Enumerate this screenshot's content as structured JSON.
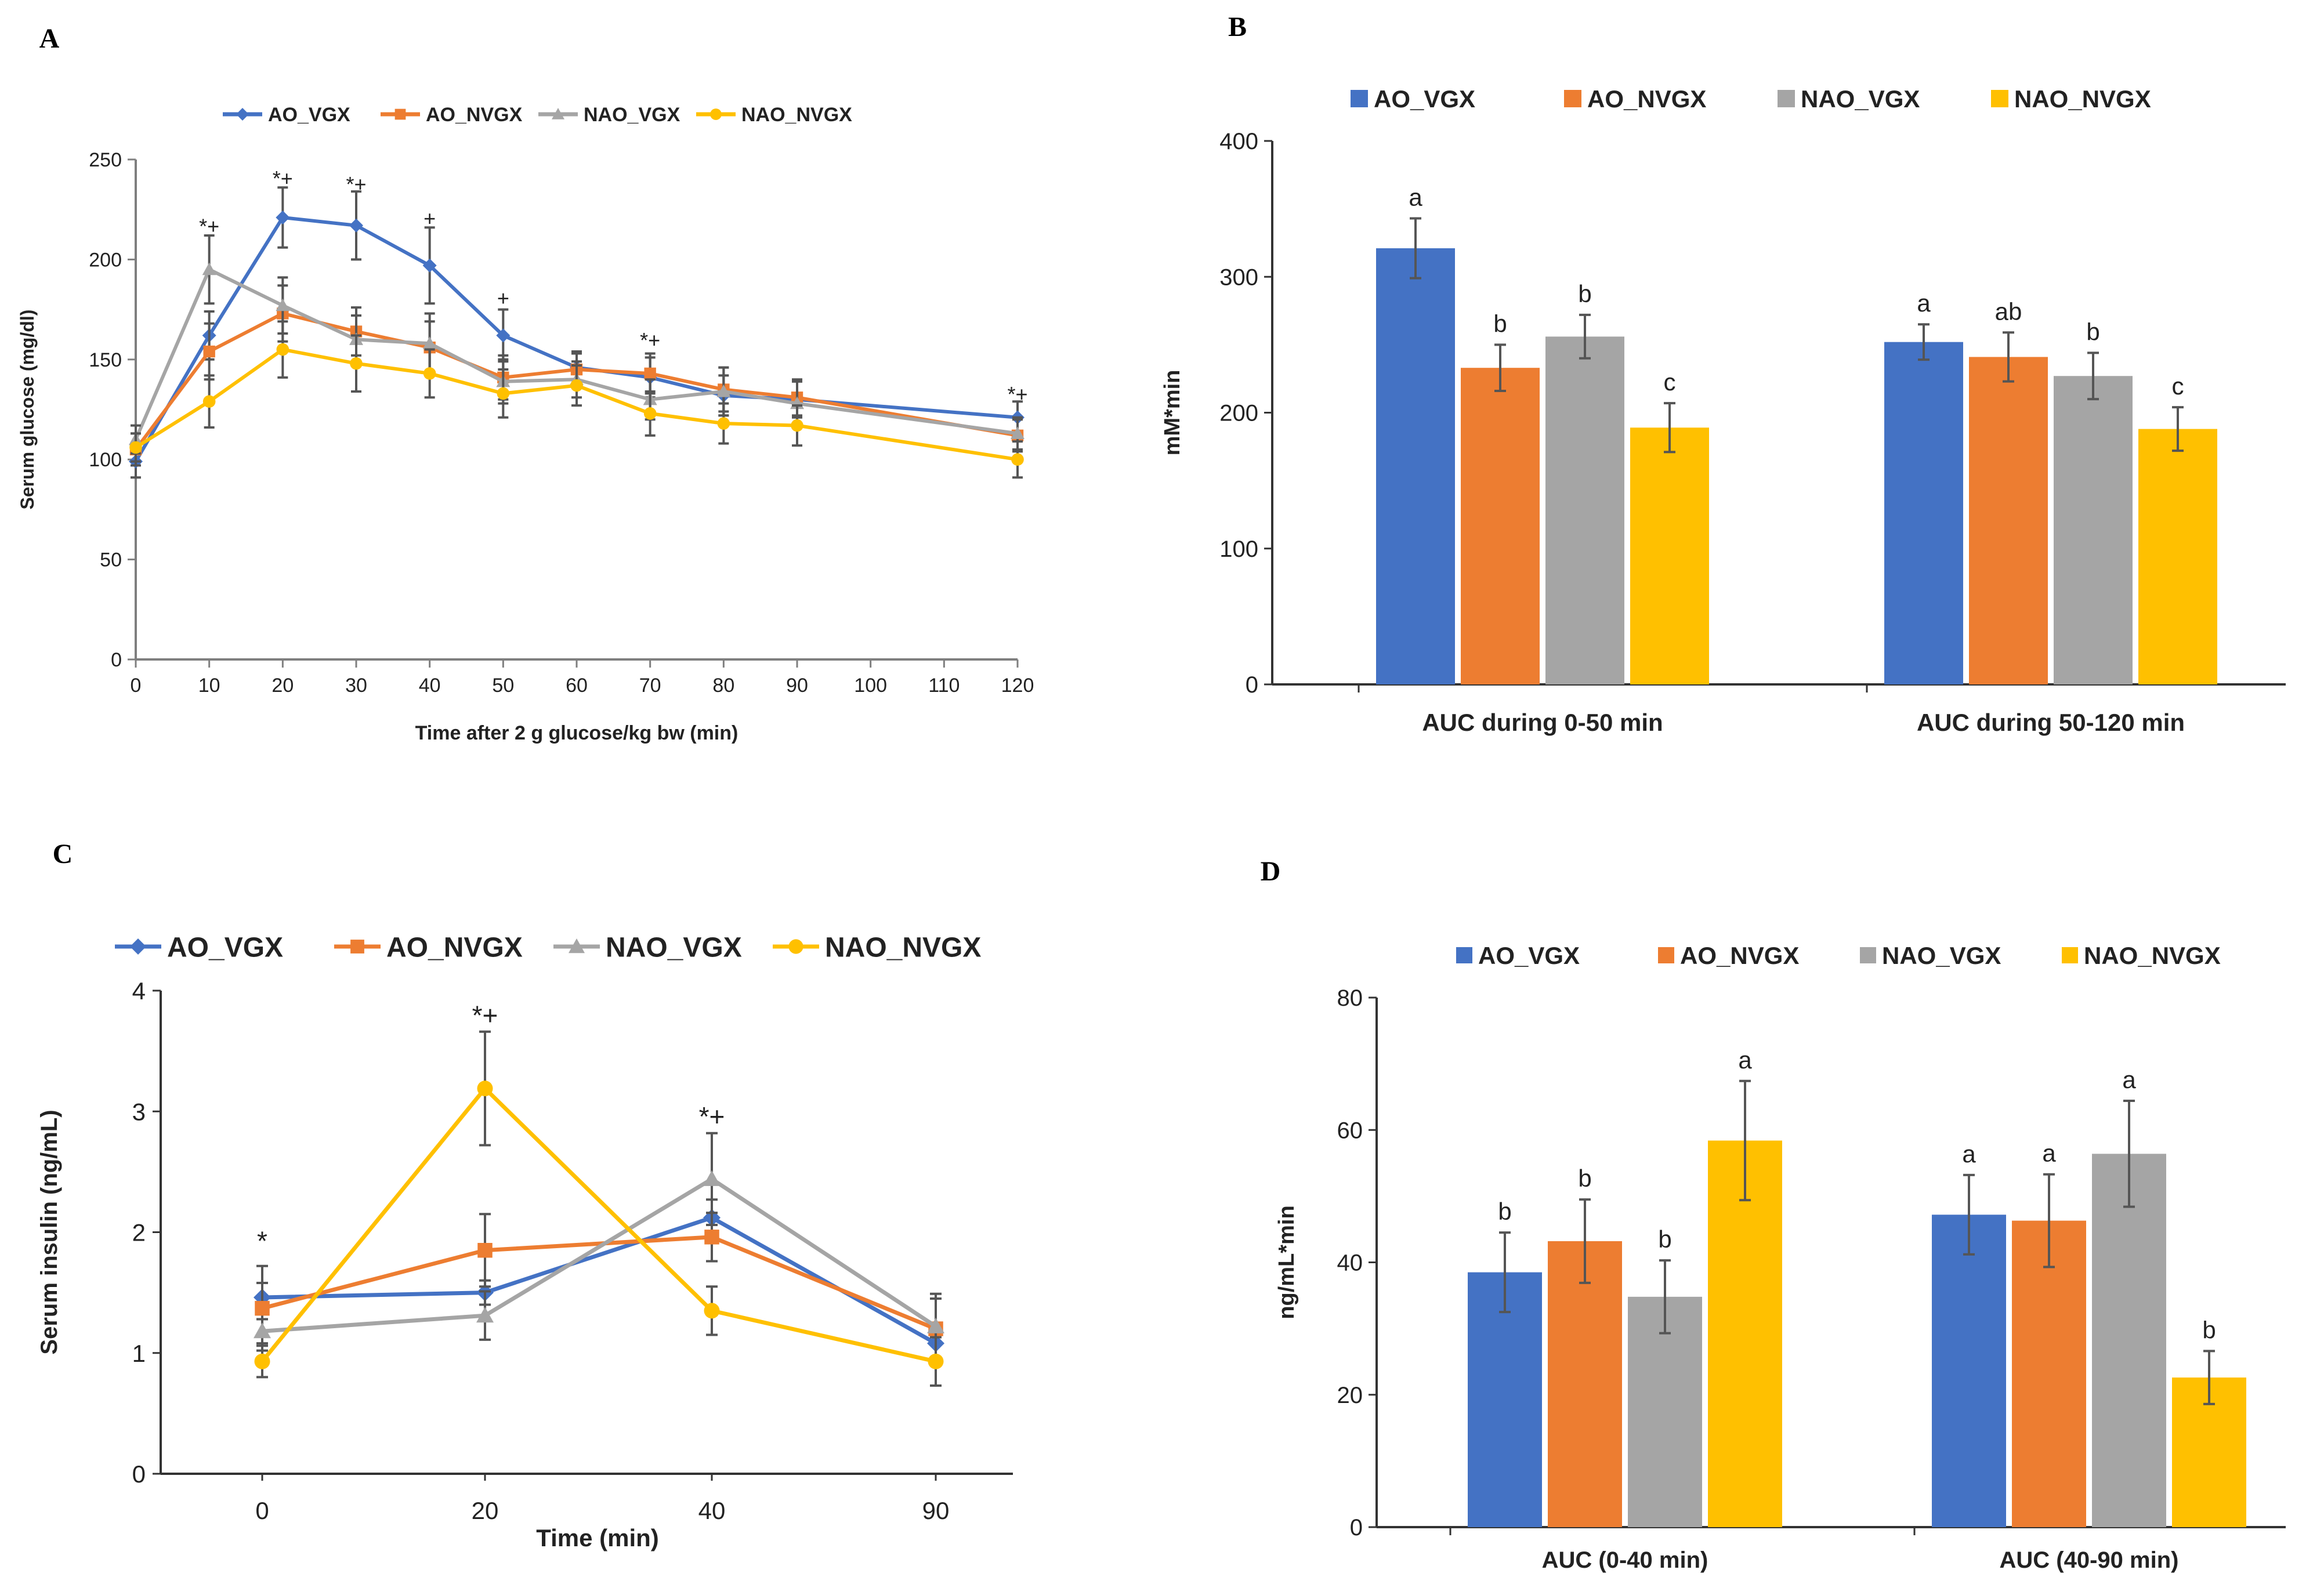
{
  "colors": {
    "AO_VGX": "#4472C4",
    "AO_NVGX": "#ED7D31",
    "NAO_VGX": "#A5A5A5",
    "NAO_NVGX": "#FFC000"
  },
  "chart_data": [
    {
      "panel": "A",
      "type": "line",
      "xlabel": "Time after 2 g glucose/kg bw (min)",
      "ylabel": "Serum glucose (mg/dl)",
      "xlim": [
        0,
        120
      ],
      "ylim": [
        0,
        250
      ],
      "xticks": [
        "0",
        "10",
        "20",
        "30",
        "40",
        "50",
        "60",
        "70",
        "80",
        "90",
        "100",
        "110",
        "120"
      ],
      "yticks": [
        "0",
        "50",
        "100",
        "150",
        "200",
        "250"
      ],
      "x": [
        0,
        10,
        20,
        30,
        40,
        50,
        60,
        70,
        80,
        90,
        120
      ],
      "series": [
        {
          "name": "AO_VGX",
          "values": [
            99,
            162,
            221,
            217,
            197,
            162,
            146,
            141,
            132,
            130,
            121
          ],
          "errors": [
            8,
            12,
            15,
            17,
            19,
            13,
            8,
            10,
            10,
            9,
            8
          ]
        },
        {
          "name": "AO_NVGX",
          "values": [
            105,
            154,
            173,
            164,
            156,
            141,
            145,
            143,
            135,
            131,
            112
          ],
          "errors": [
            8,
            14,
            14,
            12,
            13,
            11,
            8,
            10,
            11,
            9,
            8
          ]
        },
        {
          "name": "NAO_VGX",
          "values": [
            110,
            195,
            177,
            160,
            158,
            139,
            140,
            130,
            134,
            128,
            113
          ],
          "errors": [
            7,
            17,
            14,
            12,
            15,
            11,
            9,
            10,
            12,
            11,
            8
          ]
        },
        {
          "name": "NAO_NVGX",
          "values": [
            106,
            129,
            155,
            148,
            143,
            133,
            137,
            123,
            118,
            117,
            100
          ],
          "errors": [
            7,
            13,
            14,
            14,
            12,
            12,
            10,
            11,
            10,
            10,
            9
          ]
        }
      ],
      "annotations": [
        {
          "x": 10,
          "y": 213,
          "text": "*+"
        },
        {
          "x": 20,
          "y": 237,
          "text": "*+"
        },
        {
          "x": 30,
          "y": 234,
          "text": "*+"
        },
        {
          "x": 40,
          "y": 217,
          "text": "+"
        },
        {
          "x": 50,
          "y": 177,
          "text": "+"
        },
        {
          "x": 70,
          "y": 156,
          "text": "*+"
        },
        {
          "x": 120,
          "y": 129,
          "text": "*+"
        }
      ]
    },
    {
      "panel": "B",
      "type": "bar",
      "categories": [
        "AUC during 0-50 min",
        "AUC during 50-120 min"
      ],
      "ylabel": "mM*min",
      "ylim": [
        0,
        400
      ],
      "yticks": [
        "0",
        "100",
        "200",
        "300",
        "400"
      ],
      "series": [
        {
          "name": "AO_VGX",
          "values": [
            321,
            252
          ],
          "errors": [
            22,
            13
          ],
          "letters": [
            "a",
            "a"
          ]
        },
        {
          "name": "AO_NVGX",
          "values": [
            233,
            241
          ],
          "errors": [
            17,
            18
          ],
          "letters": [
            "b",
            "ab"
          ]
        },
        {
          "name": "NAO_VGX",
          "values": [
            256,
            227
          ],
          "errors": [
            16,
            17
          ],
          "letters": [
            "b",
            "b"
          ]
        },
        {
          "name": "NAO_NVGX",
          "values": [
            189,
            188
          ],
          "errors": [
            18,
            16
          ],
          "letters": [
            "c",
            "c"
          ]
        }
      ]
    },
    {
      "panel": "C",
      "type": "line",
      "xlabel": "Time (min)",
      "ylabel": "Serum insulin (ng/mL)",
      "categories": [
        "0",
        "20",
        "40",
        "90"
      ],
      "ylim": [
        0,
        4
      ],
      "yticks": [
        "0",
        "1",
        "2",
        "3",
        "4"
      ],
      "series": [
        {
          "name": "AO_VGX",
          "values": [
            1.46,
            1.5,
            2.12,
            1.08
          ],
          "errors": [
            0.12,
            0.1,
            0.15,
            0.14
          ]
        },
        {
          "name": "AO_NVGX",
          "values": [
            1.37,
            1.85,
            1.96,
            1.2
          ],
          "errors": [
            0.35,
            0.3,
            0.2,
            0.25
          ]
        },
        {
          "name": "NAO_VGX",
          "values": [
            1.18,
            1.31,
            2.44,
            1.22
          ],
          "errors": [
            0.1,
            0.2,
            0.38,
            0.27
          ]
        },
        {
          "name": "NAO_NVGX",
          "values": [
            0.93,
            3.19,
            1.35,
            0.93
          ],
          "errors": [
            0.13,
            0.47,
            0.2,
            0.2
          ]
        }
      ],
      "annotations": [
        {
          "category": "0",
          "y": 1.85,
          "text": "*"
        },
        {
          "category": "20",
          "y": 3.72,
          "text": "*+"
        },
        {
          "category": "40",
          "y": 2.88,
          "text": "*+"
        }
      ]
    },
    {
      "panel": "D",
      "type": "bar",
      "categories": [
        "AUC (0-40 min)",
        "AUC (40-90 min)"
      ],
      "ylabel": "ng/mL*min",
      "ylim": [
        0,
        80
      ],
      "yticks": [
        "0",
        "20",
        "40",
        "60",
        "80"
      ],
      "series": [
        {
          "name": "AO_VGX",
          "values": [
            38.5,
            47.2
          ],
          "errors": [
            6,
            6
          ],
          "letters": [
            "b",
            "a"
          ]
        },
        {
          "name": "AO_NVGX",
          "values": [
            43.2,
            46.3
          ],
          "errors": [
            6.3,
            7
          ],
          "letters": [
            "b",
            "a"
          ]
        },
        {
          "name": "NAO_VGX",
          "values": [
            34.8,
            56.4
          ],
          "errors": [
            5.5,
            8
          ],
          "letters": [
            "b",
            "a"
          ]
        },
        {
          "name": "NAO_NVGX",
          "values": [
            58.4,
            22.6
          ],
          "errors": [
            9,
            4
          ],
          "letters": [
            "a",
            "b"
          ]
        }
      ]
    }
  ],
  "panels": {
    "A": "A",
    "B": "B",
    "C": "C",
    "D": "D"
  }
}
